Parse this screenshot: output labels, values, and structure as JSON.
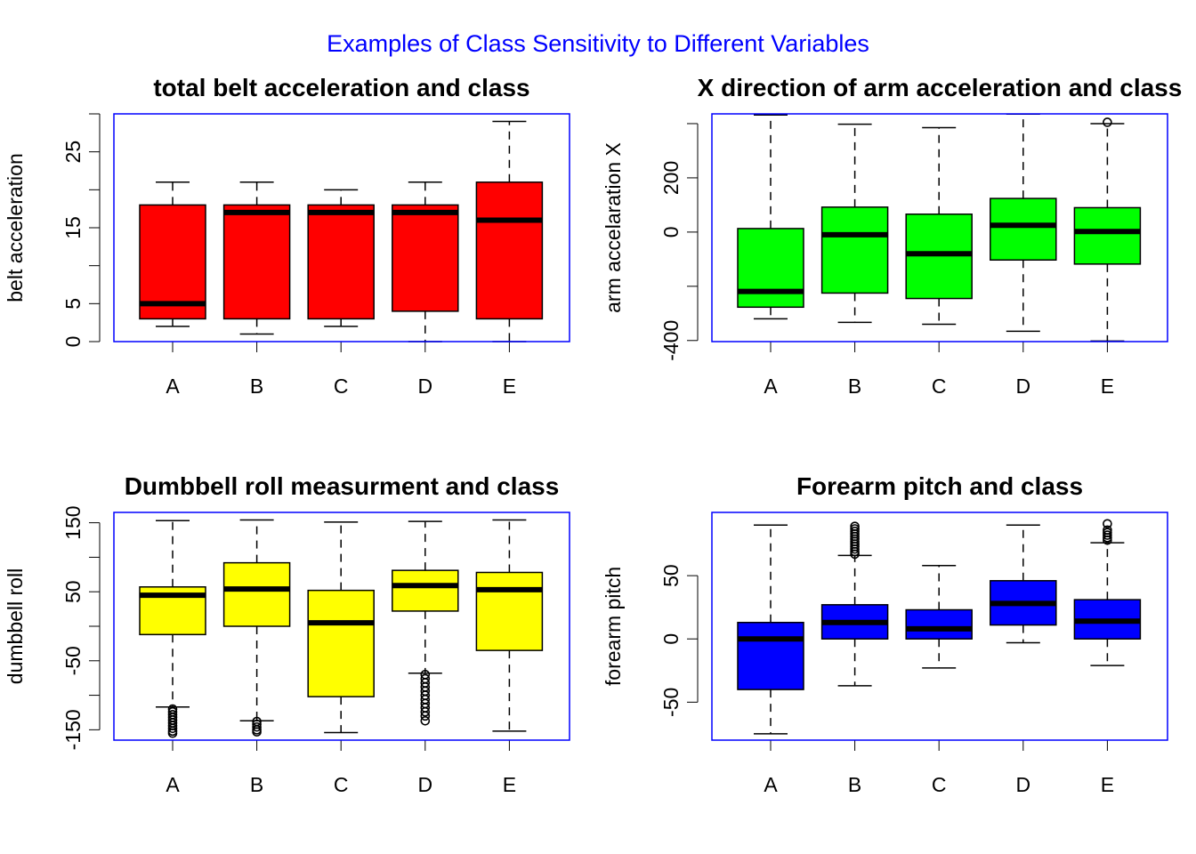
{
  "figure": {
    "title": "Examples of Class Sensitivity to Different Variables",
    "title_color": "#0000ff",
    "box_frame_color": "#0000ff"
  },
  "chart_data": [
    {
      "type": "boxplot",
      "title": "total belt acceleration and class",
      "xlabel": "",
      "ylabel": "belt acceleration",
      "fill": "#ff0000",
      "categories": [
        "A",
        "B",
        "C",
        "D",
        "E"
      ],
      "ylim": [
        0,
        30
      ],
      "yticks": [
        0,
        5,
        10,
        15,
        20,
        25,
        30
      ],
      "ytick_labels": [
        "0",
        "5",
        "",
        "15",
        "",
        "25",
        ""
      ],
      "boxes": [
        {
          "category": "A",
          "min": 2,
          "q1": 3,
          "median": 5,
          "q3": 18,
          "max": 21,
          "outliers": []
        },
        {
          "category": "B",
          "min": 1,
          "q1": 3,
          "median": 17,
          "q3": 18,
          "max": 21,
          "outliers": []
        },
        {
          "category": "C",
          "min": 2,
          "q1": 3,
          "median": 17,
          "q3": 18,
          "max": 20,
          "outliers": []
        },
        {
          "category": "D",
          "min": 0,
          "q1": 4,
          "median": 17,
          "q3": 18,
          "max": 21,
          "outliers": []
        },
        {
          "category": "E",
          "min": 0,
          "q1": 3,
          "median": 16,
          "q3": 21,
          "max": 29,
          "outliers": []
        }
      ]
    },
    {
      "type": "boxplot",
      "title": "X direction of arm acceleration and class",
      "xlabel": "",
      "ylabel": "arm accelaration X",
      "fill": "#00ff00",
      "categories": [
        "A",
        "B",
        "C",
        "D",
        "E"
      ],
      "ylim": [
        -404,
        436
      ],
      "yticks": [
        -400,
        -200,
        0,
        200,
        400
      ],
      "ytick_labels": [
        "-400",
        "",
        "0",
        "200",
        ""
      ],
      "boxes": [
        {
          "category": "A",
          "min": -320,
          "q1": -277,
          "median": -219,
          "q3": 13,
          "max": 432,
          "outliers": []
        },
        {
          "category": "B",
          "min": -333,
          "q1": -225,
          "median": -10,
          "q3": 92,
          "max": 398,
          "outliers": []
        },
        {
          "category": "C",
          "min": -340,
          "q1": -245,
          "median": -80,
          "q3": 66,
          "max": 385,
          "outliers": []
        },
        {
          "category": "D",
          "min": -366,
          "q1": -103,
          "median": 25,
          "q3": 124,
          "max": 435,
          "outliers": []
        },
        {
          "category": "E",
          "min": -402,
          "q1": -118,
          "median": 2,
          "q3": 90,
          "max": 400,
          "outliers": [
            405
          ]
        }
      ]
    },
    {
      "type": "boxplot",
      "title": "Dumbbell roll measurment and class",
      "xlabel": "",
      "ylabel": "dumbbell roll",
      "fill": "#ffff00",
      "categories": [
        "A",
        "B",
        "C",
        "D",
        "E"
      ],
      "ylim": [
        -165,
        165
      ],
      "yticks": [
        -150,
        -100,
        -50,
        0,
        50,
        100,
        150
      ],
      "ytick_labels": [
        "-150",
        "",
        "-50",
        "",
        "50",
        "",
        "150"
      ],
      "boxes": [
        {
          "category": "A",
          "min": -117,
          "q1": -12,
          "median": 45,
          "q3": 57,
          "max": 153,
          "outliers": [
            -120,
            -124,
            -128,
            -132,
            -136,
            -140,
            -144,
            -148,
            -152,
            -155
          ]
        },
        {
          "category": "B",
          "min": -137,
          "q1": 0,
          "median": 54,
          "q3": 92,
          "max": 154,
          "outliers": [
            -138,
            -142,
            -146,
            -150,
            -153
          ]
        },
        {
          "category": "C",
          "min": -154,
          "q1": -102,
          "median": 5,
          "q3": 52,
          "max": 151,
          "outliers": []
        },
        {
          "category": "D",
          "min": -68,
          "q1": 22,
          "median": 59,
          "q3": 81,
          "max": 152,
          "outliers": [
            -70,
            -76,
            -82,
            -88,
            -94,
            -100,
            -106,
            -112,
            -118,
            -124,
            -130,
            -137
          ]
        },
        {
          "category": "E",
          "min": -152,
          "q1": -35,
          "median": 53,
          "q3": 78,
          "max": 154,
          "outliers": []
        }
      ]
    },
    {
      "type": "boxplot",
      "title": "Forearm pitch and class",
      "xlabel": "",
      "ylabel": "forearm pitch",
      "fill": "#0000ff",
      "categories": [
        "A",
        "B",
        "C",
        "D",
        "E"
      ],
      "ylim": [
        -80,
        100
      ],
      "yticks": [
        -50,
        0,
        50
      ],
      "ytick_labels": [
        "-50",
        "0",
        "50"
      ],
      "boxes": [
        {
          "category": "A",
          "min": -75,
          "q1": -40,
          "median": 0,
          "q3": 13,
          "max": 90,
          "outliers": []
        },
        {
          "category": "B",
          "min": -37,
          "q1": 0,
          "median": 13,
          "q3": 27,
          "max": 66,
          "outliers": [
            67,
            69,
            71,
            73,
            75,
            77,
            79,
            81,
            83,
            85,
            87,
            89
          ]
        },
        {
          "category": "C",
          "min": -23,
          "q1": 0,
          "median": 8,
          "q3": 23,
          "max": 58,
          "outliers": []
        },
        {
          "category": "D",
          "min": -3,
          "q1": 11,
          "median": 28,
          "q3": 46,
          "max": 90,
          "outliers": []
        },
        {
          "category": "E",
          "min": -21,
          "q1": 0,
          "median": 14,
          "q3": 31,
          "max": 76,
          "outliers": [
            78,
            80,
            82,
            84,
            86,
            91
          ]
        }
      ]
    }
  ]
}
